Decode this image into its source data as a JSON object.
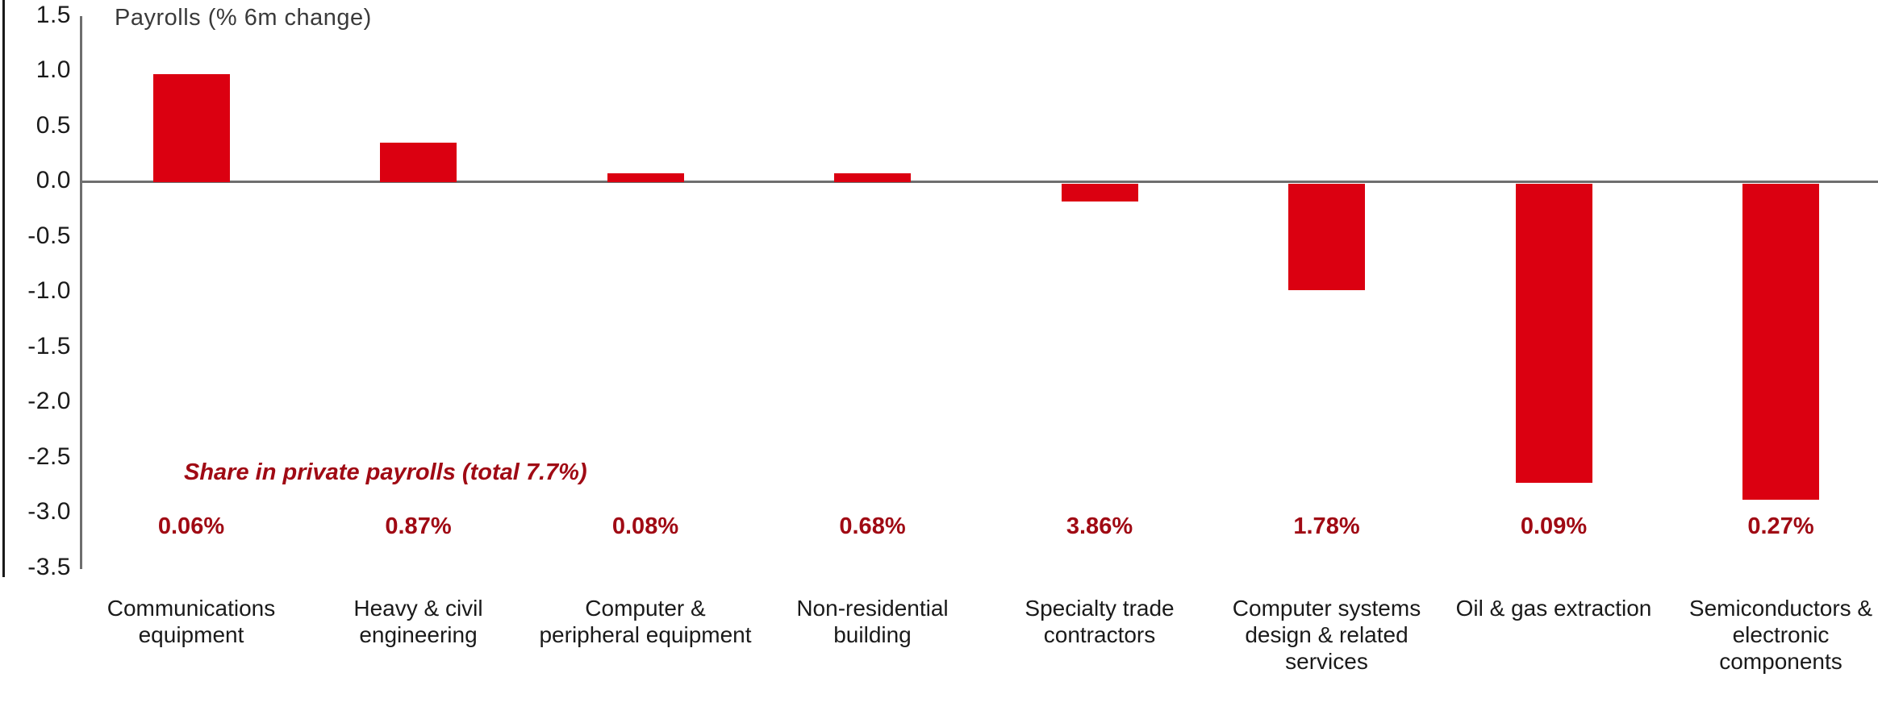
{
  "chart_data": {
    "type": "bar",
    "title": "Payrolls (% 6m change)",
    "categories": [
      "Communications equipment",
      "Heavy & civil engineering",
      "Computer & peripheral equipment",
      "Non-residential building",
      "Specialty trade contractors",
      "Computer systems design & related services",
      "Oil & gas extraction",
      "Semiconductors & electronic components"
    ],
    "category_label_lines": [
      [
        "Communications",
        "equipment"
      ],
      [
        "Heavy & civil",
        "engineering"
      ],
      [
        "Computer &",
        "peripheral equipment"
      ],
      [
        "Non-residential",
        "building"
      ],
      [
        "Specialty trade",
        "contractors"
      ],
      [
        "Computer systems",
        "design & related",
        "services"
      ],
      [
        "Oil & gas extraction"
      ],
      [
        "Semiconductors &",
        "electronic",
        "components"
      ]
    ],
    "values": [
      0.98,
      0.36,
      0.08,
      0.08,
      -0.16,
      -0.96,
      -2.71,
      -2.86
    ],
    "share_in_private_payrolls": [
      "0.06%",
      "0.87%",
      "0.08%",
      "0.68%",
      "3.86%",
      "1.78%",
      "0.09%",
      "0.27%"
    ],
    "annotation": "Share in private payrolls (total 7.7%)",
    "xlabel": "",
    "ylabel": "",
    "ylim": [
      -3.5,
      1.5
    ],
    "ytick_step": 0.5,
    "grid": false,
    "legend": false,
    "colors": {
      "bar": "#DB0011",
      "accent_text": "#A00A14",
      "axis_line": "#6E6E6E",
      "tick_text": "#1A1A1A",
      "title_text": "#3A3A3A",
      "border": "#1A1A1A"
    }
  }
}
